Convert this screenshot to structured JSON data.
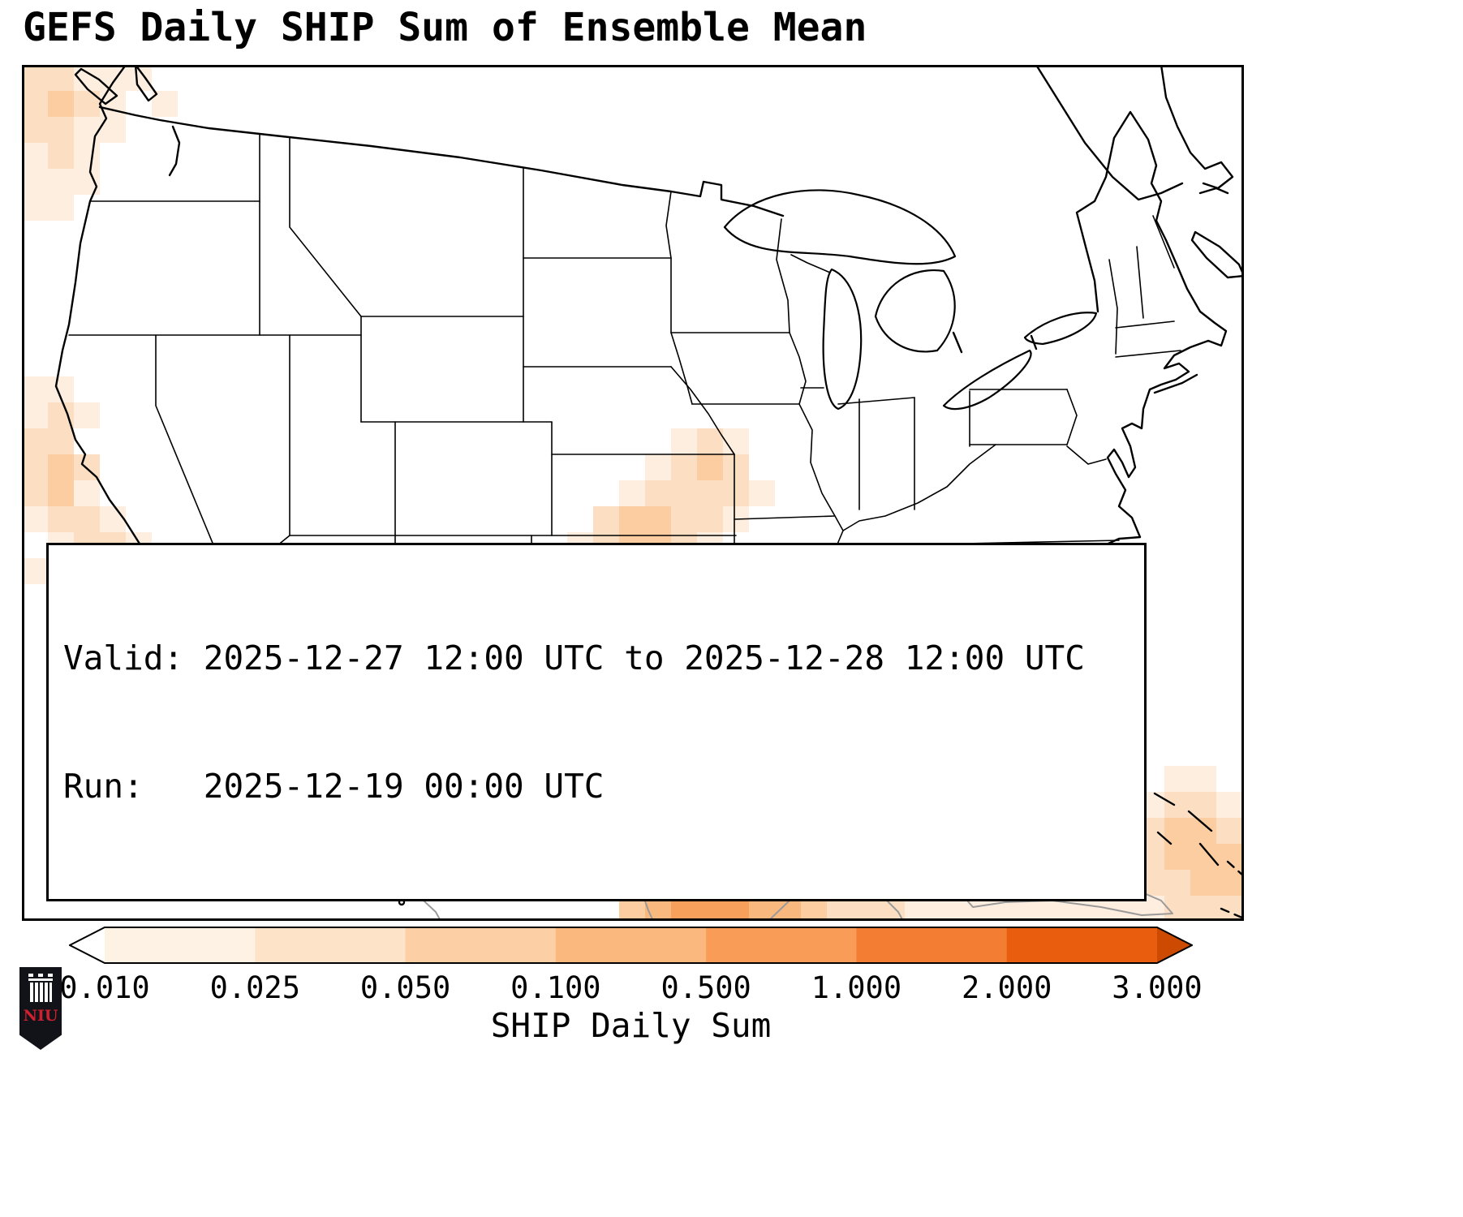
{
  "title": "GEFS Daily SHIP Sum of Ensemble Mean",
  "info": {
    "valid": "Valid: 2025-12-27 12:00 UTC to 2025-12-28 12:00 UTC",
    "run": "Run:   2025-12-19 00:00 UTC"
  },
  "colorbar": {
    "label": "SHIP Daily Sum",
    "ticks": [
      "0.010",
      "0.025",
      "0.050",
      "0.100",
      "0.500",
      "1.000",
      "2.000",
      "3.000"
    ],
    "colors": [
      "#ffffff",
      "#fef2e5",
      "#fde3c8",
      "#fccfa5",
      "#fbb87e",
      "#f89c57",
      "#f37d33",
      "#e85e0e",
      "#cc4a02"
    ]
  },
  "logo": {
    "text": "NIU"
  },
  "chart_data": {
    "type": "heatmap",
    "title": "GEFS Daily SHIP Sum of Ensemble Mean",
    "variable": "SHIP Daily Sum",
    "valid_period": "2025-12-27 12:00 UTC to 2025-12-28 12:00 UTC",
    "model_run": "2025-12-19 00:00 UTC",
    "scale_boundaries": [
      0.01,
      0.025,
      0.05,
      0.1,
      0.5,
      1.0,
      2.0,
      3.0
    ],
    "legend_position": "bottom",
    "cells_format": "[col,row,level] on a 47x33 grid over the map; level 1-8 indexes palette (1=lightest); approximate SHIP ensemble-mean shading read from the map",
    "cell_size": 32,
    "palette": [
      "#feeedf",
      "#fcdfc2",
      "#fbcda1",
      "#f9b97e",
      "#f6a05c",
      "#f2873d",
      "#ec6e24",
      "#e25508"
    ],
    "cells": [
      [
        0,
        0,
        2
      ],
      [
        1,
        0,
        2
      ],
      [
        2,
        0,
        1
      ],
      [
        3,
        0,
        1
      ],
      [
        4,
        0,
        1
      ],
      [
        0,
        1,
        2
      ],
      [
        1,
        1,
        3
      ],
      [
        2,
        1,
        2
      ],
      [
        3,
        1,
        1
      ],
      [
        5,
        1,
        1
      ],
      [
        0,
        2,
        2
      ],
      [
        1,
        2,
        2
      ],
      [
        2,
        2,
        1
      ],
      [
        3,
        2,
        1
      ],
      [
        0,
        3,
        1
      ],
      [
        1,
        3,
        2
      ],
      [
        2,
        3,
        1
      ],
      [
        0,
        4,
        1
      ],
      [
        1,
        4,
        1
      ],
      [
        2,
        4,
        1
      ],
      [
        0,
        5,
        1
      ],
      [
        1,
        5,
        1
      ],
      [
        0,
        12,
        1
      ],
      [
        1,
        12,
        1
      ],
      [
        0,
        13,
        1
      ],
      [
        1,
        13,
        2
      ],
      [
        2,
        13,
        1
      ],
      [
        0,
        14,
        2
      ],
      [
        1,
        14,
        2
      ],
      [
        0,
        15,
        2
      ],
      [
        1,
        15,
        3
      ],
      [
        2,
        15,
        2
      ],
      [
        0,
        16,
        2
      ],
      [
        1,
        16,
        3
      ],
      [
        2,
        16,
        1
      ],
      [
        0,
        17,
        1
      ],
      [
        1,
        17,
        2
      ],
      [
        2,
        17,
        2
      ],
      [
        3,
        17,
        1
      ],
      [
        1,
        18,
        1
      ],
      [
        2,
        18,
        2
      ],
      [
        3,
        18,
        2
      ],
      [
        4,
        18,
        1
      ],
      [
        0,
        19,
        1
      ],
      [
        1,
        19,
        1
      ],
      [
        2,
        19,
        1
      ],
      [
        1,
        20,
        1
      ],
      [
        2,
        20,
        1
      ],
      [
        4,
        24,
        1
      ],
      [
        25,
        14,
        1
      ],
      [
        26,
        14,
        2
      ],
      [
        27,
        14,
        1
      ],
      [
        24,
        15,
        1
      ],
      [
        25,
        15,
        2
      ],
      [
        26,
        15,
        3
      ],
      [
        27,
        15,
        2
      ],
      [
        23,
        16,
        1
      ],
      [
        24,
        16,
        2
      ],
      [
        25,
        16,
        2
      ],
      [
        26,
        16,
        2
      ],
      [
        27,
        16,
        2
      ],
      [
        28,
        16,
        1
      ],
      [
        22,
        17,
        2
      ],
      [
        23,
        17,
        3
      ],
      [
        24,
        17,
        3
      ],
      [
        25,
        17,
        2
      ],
      [
        26,
        17,
        2
      ],
      [
        27,
        17,
        1
      ],
      [
        21,
        18,
        1
      ],
      [
        22,
        18,
        2
      ],
      [
        23,
        18,
        3
      ],
      [
        24,
        18,
        3
      ],
      [
        25,
        18,
        2
      ],
      [
        26,
        18,
        1
      ],
      [
        20,
        19,
        1
      ],
      [
        21,
        19,
        2
      ],
      [
        22,
        19,
        2
      ],
      [
        23,
        19,
        2
      ],
      [
        24,
        19,
        2
      ],
      [
        25,
        19,
        1
      ],
      [
        18,
        20,
        1
      ],
      [
        19,
        20,
        2
      ],
      [
        20,
        20,
        2
      ],
      [
        21,
        20,
        2
      ],
      [
        22,
        20,
        2
      ],
      [
        23,
        20,
        1
      ],
      [
        17,
        21,
        1
      ],
      [
        18,
        21,
        2
      ],
      [
        19,
        21,
        2
      ],
      [
        20,
        21,
        3
      ],
      [
        21,
        21,
        2
      ],
      [
        22,
        21,
        2
      ],
      [
        17,
        22,
        1
      ],
      [
        18,
        22,
        2
      ],
      [
        19,
        22,
        3
      ],
      [
        20,
        22,
        3
      ],
      [
        21,
        22,
        3
      ],
      [
        22,
        22,
        2
      ],
      [
        23,
        22,
        1
      ],
      [
        18,
        23,
        2
      ],
      [
        19,
        23,
        4
      ],
      [
        20,
        23,
        4
      ],
      [
        21,
        23,
        3
      ],
      [
        22,
        23,
        2
      ],
      [
        23,
        23,
        2
      ],
      [
        24,
        23,
        1
      ],
      [
        18,
        24,
        2
      ],
      [
        19,
        24,
        3
      ],
      [
        20,
        24,
        4
      ],
      [
        21,
        24,
        4
      ],
      [
        22,
        24,
        3
      ],
      [
        23,
        24,
        2
      ],
      [
        24,
        24,
        2
      ],
      [
        19,
        25,
        2
      ],
      [
        20,
        25,
        3
      ],
      [
        21,
        25,
        3
      ],
      [
        22,
        25,
        3
      ],
      [
        23,
        25,
        3
      ],
      [
        24,
        25,
        3
      ],
      [
        25,
        25,
        2
      ],
      [
        26,
        25,
        1
      ],
      [
        20,
        26,
        2
      ],
      [
        21,
        26,
        2
      ],
      [
        22,
        26,
        3
      ],
      [
        23,
        26,
        4
      ],
      [
        24,
        26,
        4
      ],
      [
        25,
        26,
        3
      ],
      [
        26,
        26,
        2
      ],
      [
        27,
        26,
        2
      ],
      [
        21,
        27,
        2
      ],
      [
        22,
        27,
        3
      ],
      [
        23,
        27,
        5
      ],
      [
        24,
        27,
        5
      ],
      [
        25,
        27,
        4
      ],
      [
        26,
        27,
        3
      ],
      [
        27,
        27,
        3
      ],
      [
        28,
        27,
        2
      ],
      [
        22,
        28,
        3
      ],
      [
        23,
        28,
        5
      ],
      [
        24,
        28,
        6
      ],
      [
        25,
        28,
        7
      ],
      [
        26,
        28,
        5
      ],
      [
        27,
        28,
        4
      ],
      [
        28,
        28,
        3
      ],
      [
        29,
        28,
        2
      ],
      [
        30,
        28,
        1
      ],
      [
        22,
        29,
        2
      ],
      [
        23,
        29,
        4
      ],
      [
        24,
        29,
        6
      ],
      [
        25,
        29,
        7
      ],
      [
        26,
        29,
        6
      ],
      [
        27,
        29,
        5
      ],
      [
        28,
        29,
        3
      ],
      [
        29,
        29,
        2
      ],
      [
        30,
        29,
        2
      ],
      [
        31,
        29,
        1
      ],
      [
        23,
        30,
        4
      ],
      [
        24,
        30,
        6
      ],
      [
        25,
        30,
        7
      ],
      [
        26,
        30,
        6
      ],
      [
        27,
        30,
        5
      ],
      [
        28,
        30,
        4
      ],
      [
        29,
        30,
        3
      ],
      [
        30,
        30,
        2
      ],
      [
        31,
        30,
        2
      ],
      [
        32,
        30,
        1
      ],
      [
        23,
        31,
        3
      ],
      [
        24,
        31,
        5
      ],
      [
        25,
        31,
        6
      ],
      [
        26,
        31,
        6
      ],
      [
        27,
        31,
        5
      ],
      [
        28,
        31,
        4
      ],
      [
        29,
        31,
        3
      ],
      [
        30,
        31,
        2
      ],
      [
        31,
        31,
        2
      ],
      [
        32,
        31,
        1
      ],
      [
        33,
        31,
        1
      ],
      [
        34,
        31,
        1
      ],
      [
        35,
        31,
        1
      ],
      [
        36,
        31,
        1
      ],
      [
        23,
        32,
        3
      ],
      [
        24,
        32,
        4
      ],
      [
        25,
        32,
        5
      ],
      [
        26,
        32,
        5
      ],
      [
        27,
        32,
        5
      ],
      [
        28,
        32,
        4
      ],
      [
        29,
        32,
        4
      ],
      [
        30,
        32,
        3
      ],
      [
        31,
        32,
        2
      ],
      [
        32,
        32,
        2
      ],
      [
        33,
        32,
        2
      ],
      [
        34,
        32,
        1
      ],
      [
        35,
        32,
        1
      ],
      [
        36,
        32,
        1
      ],
      [
        37,
        32,
        1
      ],
      [
        38,
        32,
        1
      ],
      [
        39,
        32,
        1
      ],
      [
        40,
        32,
        1
      ],
      [
        41,
        32,
        1
      ],
      [
        42,
        32,
        1
      ],
      [
        44,
        27,
        1
      ],
      [
        45,
        27,
        1
      ],
      [
        43,
        28,
        1
      ],
      [
        44,
        28,
        2
      ],
      [
        45,
        28,
        2
      ],
      [
        46,
        28,
        1
      ],
      [
        43,
        29,
        2
      ],
      [
        44,
        29,
        3
      ],
      [
        45,
        29,
        3
      ],
      [
        46,
        29,
        2
      ],
      [
        42,
        30,
        1
      ],
      [
        43,
        30,
        2
      ],
      [
        44,
        30,
        3
      ],
      [
        45,
        30,
        3
      ],
      [
        46,
        30,
        3
      ],
      [
        42,
        31,
        1
      ],
      [
        43,
        31,
        2
      ],
      [
        44,
        31,
        2
      ],
      [
        45,
        31,
        3
      ],
      [
        46,
        31,
        3
      ],
      [
        43,
        32,
        1
      ],
      [
        44,
        32,
        2
      ],
      [
        45,
        32,
        2
      ],
      [
        46,
        32,
        2
      ],
      [
        37,
        31,
        1
      ],
      [
        38,
        31,
        1
      ],
      [
        39,
        31,
        1
      ],
      [
        40,
        31,
        1
      ],
      [
        41,
        31,
        1
      ]
    ]
  }
}
